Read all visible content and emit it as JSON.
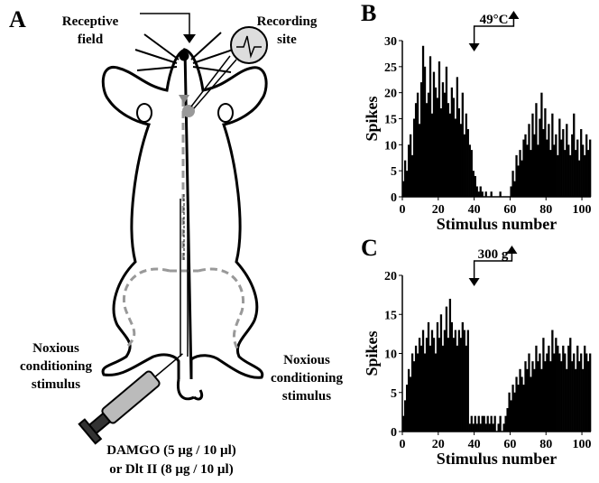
{
  "panel_a": {
    "letter": "A",
    "receptive_field": [
      "Receptive",
      "field"
    ],
    "recording_site": [
      "Recording",
      "site"
    ],
    "left_stimulus": [
      "Noxious",
      "conditioning",
      "stimulus"
    ],
    "right_stimulus": [
      "Noxious",
      "conditioning",
      "stimulus"
    ],
    "drug": [
      "DAMGO (5 µg / 10 µl)",
      "or  Dlt II (8 µg / 10 µl)"
    ]
  },
  "chart_data": [
    {
      "type": "histogram",
      "panel": "B",
      "annotation": "49°C",
      "xlabel": "Stimulus number",
      "ylabel": "Spikes",
      "color": "#000000",
      "bins": [
        0,
        1,
        2,
        3,
        4,
        5,
        6,
        7,
        8,
        9,
        10,
        11,
        12,
        13,
        14,
        15,
        16,
        17,
        18,
        19,
        20,
        21,
        22,
        23,
        24,
        25,
        26,
        27,
        28,
        29,
        30,
        31,
        32,
        33,
        34,
        35,
        36,
        37,
        38,
        39,
        40,
        41,
        42,
        43,
        44,
        45,
        46,
        47,
        48,
        49,
        50,
        51,
        52,
        53,
        54,
        55,
        56,
        57,
        58,
        59,
        60,
        61,
        62,
        63,
        64,
        65,
        66,
        67,
        68,
        69,
        70,
        71,
        72,
        73,
        74,
        75,
        76,
        77,
        78,
        79,
        80,
        81,
        82,
        83,
        84,
        85,
        86,
        87,
        88,
        89,
        90,
        91,
        92,
        93,
        94,
        95,
        96,
        97,
        98,
        99,
        100,
        101,
        102,
        103,
        104,
        105
      ],
      "values": [
        3,
        7,
        5,
        10,
        12,
        8,
        15,
        18,
        20,
        14,
        22,
        29,
        25,
        18,
        20,
        27,
        16,
        24,
        21,
        19,
        26,
        17,
        22,
        20,
        25,
        18,
        16,
        21,
        19,
        15,
        23,
        17,
        14,
        20,
        12,
        16,
        13,
        10,
        9,
        5,
        4,
        2,
        1,
        2,
        1,
        0,
        1,
        0,
        0,
        1,
        0,
        0,
        0,
        0,
        1,
        0,
        0,
        0,
        0,
        0,
        2,
        5,
        3,
        8,
        6,
        9,
        7,
        11,
        12,
        10,
        14,
        9,
        16,
        12,
        18,
        10,
        15,
        20,
        13,
        17,
        11,
        14,
        9,
        16,
        10,
        12,
        8,
        15,
        11,
        13,
        9,
        14,
        10,
        8,
        12,
        16,
        9,
        11,
        7,
        13,
        10,
        8,
        12,
        9,
        11
      ],
      "xlim": [
        0,
        105
      ],
      "xticks": [
        0,
        20,
        40,
        60,
        80,
        100
      ],
      "ylim": [
        0,
        30
      ],
      "yticks": [
        0,
        5,
        10,
        15,
        20,
        25,
        30
      ],
      "stimulus_on": 40,
      "stimulus_off": 62
    },
    {
      "type": "histogram",
      "panel": "C",
      "annotation": "300 g",
      "xlabel": "Stimulus number",
      "ylabel": "Spikes",
      "color": "#000000",
      "bins": [
        0,
        1,
        2,
        3,
        4,
        5,
        6,
        7,
        8,
        9,
        10,
        11,
        12,
        13,
        14,
        15,
        16,
        17,
        18,
        19,
        20,
        21,
        22,
        23,
        24,
        25,
        26,
        27,
        28,
        29,
        30,
        31,
        32,
        33,
        34,
        35,
        36,
        37,
        38,
        39,
        40,
        41,
        42,
        43,
        44,
        45,
        46,
        47,
        48,
        49,
        50,
        51,
        52,
        53,
        54,
        55,
        56,
        57,
        58,
        59,
        60,
        61,
        62,
        63,
        64,
        65,
        66,
        67,
        68,
        69,
        70,
        71,
        72,
        73,
        74,
        75,
        76,
        77,
        78,
        79,
        80,
        81,
        82,
        83,
        84,
        85,
        86,
        87,
        88,
        89,
        90,
        91,
        92,
        93,
        94,
        95,
        96,
        97,
        98,
        99,
        100,
        101,
        102,
        103,
        104,
        105
      ],
      "values": [
        2,
        4,
        6,
        8,
        7,
        10,
        9,
        11,
        10,
        12,
        11,
        13,
        10,
        12,
        14,
        11,
        13,
        12,
        10,
        14,
        12,
        15,
        11,
        13,
        16,
        12,
        17,
        14,
        12,
        13,
        11,
        13,
        12,
        14,
        13,
        11,
        13,
        1,
        2,
        1,
        2,
        1,
        2,
        1,
        2,
        2,
        1,
        2,
        1,
        2,
        1,
        2,
        0,
        1,
        2,
        0,
        1,
        2,
        3,
        5,
        4,
        6,
        5,
        7,
        6,
        8,
        7,
        6,
        9,
        8,
        10,
        7,
        9,
        8,
        11,
        9,
        10,
        8,
        12,
        9,
        10,
        11,
        9,
        13,
        10,
        12,
        11,
        10,
        9,
        11,
        10,
        8,
        11,
        12,
        9,
        10,
        8,
        11,
        9,
        10,
        8,
        11,
        10,
        9,
        10
      ],
      "xlim": [
        0,
        105
      ],
      "xticks": [
        0,
        20,
        40,
        60,
        80,
        100
      ],
      "ylim": [
        0,
        20
      ],
      "yticks": [
        0,
        5,
        10,
        15,
        20
      ],
      "stimulus_on": 40,
      "stimulus_off": 61
    }
  ]
}
